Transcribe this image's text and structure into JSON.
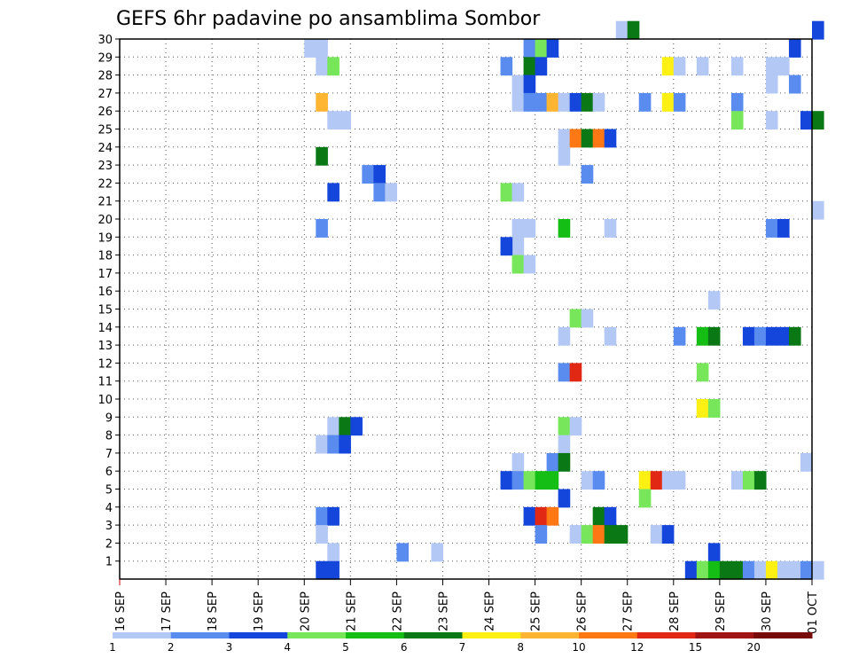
{
  "chart_data": {
    "type": "heatmap",
    "title": "GEFS 6hr padavine po ansamblima Sombor",
    "y_ticks": [
      1,
      2,
      3,
      4,
      5,
      6,
      7,
      8,
      9,
      10,
      11,
      12,
      13,
      14,
      15,
      16,
      17,
      18,
      19,
      20,
      21,
      22,
      23,
      24,
      25,
      26,
      27,
      28,
      29,
      30
    ],
    "y_range": [
      0,
      30
    ],
    "x_ticks": [
      "16 SEP",
      "17 SEP",
      "18 SEP",
      "19 SEP",
      "20 SEP",
      "21 SEP",
      "22 SEP",
      "23 SEP",
      "24 SEP",
      "25 SEP",
      "26 SEP",
      "27 SEP",
      "28 SEP",
      "29 SEP",
      "30 SEP",
      "01 OCT"
    ],
    "x_range_steps": [
      0,
      60
    ],
    "grid": true,
    "legend": {
      "placement": "bottom",
      "labels": [
        "1",
        "2",
        "3",
        "4",
        "5",
        "6",
        "7",
        "8",
        "10",
        "12",
        "15",
        "20"
      ],
      "colors": [
        "#b4c8f5",
        "#5a8cf0",
        "#1446dc",
        "#78e65a",
        "#14be14",
        "#0a7814",
        "#fff014",
        "#ffb432",
        "#ff7814",
        "#e12814",
        "#a01414",
        "#780a0a"
      ]
    },
    "cells": [
      {
        "t": 43,
        "m": 30,
        "c": 0
      },
      {
        "t": 44,
        "m": 30,
        "c": 5
      },
      {
        "t": 60,
        "m": 30,
        "c": 2
      },
      {
        "t": 16,
        "m": 29,
        "c": 0
      },
      {
        "t": 17,
        "m": 29,
        "c": 0
      },
      {
        "t": 35,
        "m": 29,
        "c": 1
      },
      {
        "t": 36,
        "m": 29,
        "c": 3
      },
      {
        "t": 37,
        "m": 29,
        "c": 2
      },
      {
        "t": 58,
        "m": 29,
        "c": 2
      },
      {
        "t": 17,
        "m": 28,
        "c": 0
      },
      {
        "t": 18,
        "m": 28,
        "c": 3
      },
      {
        "t": 33,
        "m": 28,
        "c": 1
      },
      {
        "t": 35,
        "m": 28,
        "c": 5
      },
      {
        "t": 36,
        "m": 28,
        "c": 2
      },
      {
        "t": 47,
        "m": 28,
        "c": 6
      },
      {
        "t": 48,
        "m": 28,
        "c": 0
      },
      {
        "t": 50,
        "m": 28,
        "c": 0
      },
      {
        "t": 53,
        "m": 28,
        "c": 0
      },
      {
        "t": 56,
        "m": 28,
        "c": 0
      },
      {
        "t": 57,
        "m": 28,
        "c": 0
      },
      {
        "t": 34,
        "m": 27,
        "c": 0
      },
      {
        "t": 35,
        "m": 27,
        "c": 2
      },
      {
        "t": 56,
        "m": 27,
        "c": 0
      },
      {
        "t": 58,
        "m": 27,
        "c": 1
      },
      {
        "t": 17,
        "m": 26,
        "c": 7
      },
      {
        "t": 34,
        "m": 26,
        "c": 0
      },
      {
        "t": 35,
        "m": 26,
        "c": 1
      },
      {
        "t": 36,
        "m": 26,
        "c": 1
      },
      {
        "t": 37,
        "m": 26,
        "c": 7
      },
      {
        "t": 38,
        "m": 26,
        "c": 0
      },
      {
        "t": 39,
        "m": 26,
        "c": 2
      },
      {
        "t": 40,
        "m": 26,
        "c": 5
      },
      {
        "t": 41,
        "m": 26,
        "c": 0
      },
      {
        "t": 45,
        "m": 26,
        "c": 1
      },
      {
        "t": 47,
        "m": 26,
        "c": 6
      },
      {
        "t": 48,
        "m": 26,
        "c": 1
      },
      {
        "t": 53,
        "m": 26,
        "c": 1
      },
      {
        "t": 18,
        "m": 25,
        "c": 0
      },
      {
        "t": 19,
        "m": 25,
        "c": 0
      },
      {
        "t": 53,
        "m": 25,
        "c": 3
      },
      {
        "t": 56,
        "m": 25,
        "c": 0
      },
      {
        "t": 59,
        "m": 25,
        "c": 2
      },
      {
        "t": 60,
        "m": 25,
        "c": 5
      },
      {
        "t": 38,
        "m": 24,
        "c": 0
      },
      {
        "t": 39,
        "m": 24,
        "c": 8
      },
      {
        "t": 40,
        "m": 24,
        "c": 5
      },
      {
        "t": 41,
        "m": 24,
        "c": 8
      },
      {
        "t": 42,
        "m": 24,
        "c": 2
      },
      {
        "t": 17,
        "m": 23,
        "c": 5
      },
      {
        "t": 38,
        "m": 23,
        "c": 0
      },
      {
        "t": 21,
        "m": 22,
        "c": 1
      },
      {
        "t": 22,
        "m": 22,
        "c": 2
      },
      {
        "t": 40,
        "m": 22,
        "c": 1
      },
      {
        "t": 18,
        "m": 21,
        "c": 2
      },
      {
        "t": 22,
        "m": 21,
        "c": 1
      },
      {
        "t": 23,
        "m": 21,
        "c": 0
      },
      {
        "t": 33,
        "m": 21,
        "c": 3
      },
      {
        "t": 34,
        "m": 21,
        "c": 0
      },
      {
        "t": 60,
        "m": 20,
        "c": 0
      },
      {
        "t": 17,
        "m": 19,
        "c": 1
      },
      {
        "t": 34,
        "m": 19,
        "c": 0
      },
      {
        "t": 35,
        "m": 19,
        "c": 0
      },
      {
        "t": 38,
        "m": 19,
        "c": 4
      },
      {
        "t": 42,
        "m": 19,
        "c": 0
      },
      {
        "t": 56,
        "m": 19,
        "c": 1
      },
      {
        "t": 57,
        "m": 19,
        "c": 2
      },
      {
        "t": 34,
        "m": 18,
        "c": 0
      },
      {
        "t": 33,
        "m": 18,
        "c": 2
      },
      {
        "t": 34,
        "m": 17,
        "c": 3
      },
      {
        "t": 35,
        "m": 17,
        "c": 0
      },
      {
        "t": 51,
        "m": 15,
        "c": 0
      },
      {
        "t": 39,
        "m": 14,
        "c": 3
      },
      {
        "t": 40,
        "m": 14,
        "c": 0
      },
      {
        "t": 38,
        "m": 13,
        "c": 0
      },
      {
        "t": 42,
        "m": 13,
        "c": 0
      },
      {
        "t": 48,
        "m": 13,
        "c": 1
      },
      {
        "t": 50,
        "m": 13,
        "c": 4
      },
      {
        "t": 51,
        "m": 13,
        "c": 5
      },
      {
        "t": 54,
        "m": 13,
        "c": 2
      },
      {
        "t": 55,
        "m": 13,
        "c": 1
      },
      {
        "t": 56,
        "m": 13,
        "c": 2
      },
      {
        "t": 57,
        "m": 13,
        "c": 2
      },
      {
        "t": 58,
        "m": 13,
        "c": 5
      },
      {
        "t": 38,
        "m": 11,
        "c": 1
      },
      {
        "t": 39,
        "m": 11,
        "c": 9
      },
      {
        "t": 50,
        "m": 11,
        "c": 3
      },
      {
        "t": 50,
        "m": 9,
        "c": 6
      },
      {
        "t": 51,
        "m": 9,
        "c": 3
      },
      {
        "t": 18,
        "m": 8,
        "c": 0
      },
      {
        "t": 19,
        "m": 8,
        "c": 5
      },
      {
        "t": 20,
        "m": 8,
        "c": 2
      },
      {
        "t": 38,
        "m": 8,
        "c": 3
      },
      {
        "t": 39,
        "m": 8,
        "c": 0
      },
      {
        "t": 17,
        "m": 7,
        "c": 0
      },
      {
        "t": 18,
        "m": 7,
        "c": 1
      },
      {
        "t": 19,
        "m": 7,
        "c": 2
      },
      {
        "t": 38,
        "m": 7,
        "c": 0
      },
      {
        "t": 34,
        "m": 6,
        "c": 0
      },
      {
        "t": 37,
        "m": 6,
        "c": 1
      },
      {
        "t": 38,
        "m": 6,
        "c": 5
      },
      {
        "t": 59,
        "m": 6,
        "c": 0
      },
      {
        "t": 33,
        "m": 5,
        "c": 2
      },
      {
        "t": 34,
        "m": 5,
        "c": 1
      },
      {
        "t": 35,
        "m": 5,
        "c": 3
      },
      {
        "t": 36,
        "m": 5,
        "c": 4
      },
      {
        "t": 37,
        "m": 5,
        "c": 4
      },
      {
        "t": 40,
        "m": 5,
        "c": 0
      },
      {
        "t": 41,
        "m": 5,
        "c": 1
      },
      {
        "t": 45,
        "m": 5,
        "c": 6
      },
      {
        "t": 46,
        "m": 5,
        "c": 9
      },
      {
        "t": 47,
        "m": 5,
        "c": 0
      },
      {
        "t": 48,
        "m": 5,
        "c": 0
      },
      {
        "t": 53,
        "m": 5,
        "c": 0
      },
      {
        "t": 54,
        "m": 5,
        "c": 3
      },
      {
        "t": 55,
        "m": 5,
        "c": 5
      },
      {
        "t": 38,
        "m": 4,
        "c": 2
      },
      {
        "t": 45,
        "m": 4,
        "c": 3
      },
      {
        "t": 17,
        "m": 3,
        "c": 1
      },
      {
        "t": 18,
        "m": 3,
        "c": 2
      },
      {
        "t": 35,
        "m": 3,
        "c": 2
      },
      {
        "t": 36,
        "m": 3,
        "c": 9
      },
      {
        "t": 37,
        "m": 3,
        "c": 8
      },
      {
        "t": 41,
        "m": 3,
        "c": 5
      },
      {
        "t": 42,
        "m": 3,
        "c": 2
      },
      {
        "t": 17,
        "m": 2,
        "c": 0
      },
      {
        "t": 36,
        "m": 2,
        "c": 1
      },
      {
        "t": 39,
        "m": 2,
        "c": 0
      },
      {
        "t": 40,
        "m": 2,
        "c": 3
      },
      {
        "t": 41,
        "m": 2,
        "c": 8
      },
      {
        "t": 42,
        "m": 2,
        "c": 5
      },
      {
        "t": 43,
        "m": 2,
        "c": 5
      },
      {
        "t": 46,
        "m": 2,
        "c": 0
      },
      {
        "t": 47,
        "m": 2,
        "c": 2
      },
      {
        "t": 18,
        "m": 1,
        "c": 0
      },
      {
        "t": 24,
        "m": 1,
        "c": 1
      },
      {
        "t": 27,
        "m": 1,
        "c": 0
      },
      {
        "t": 51,
        "m": 1,
        "c": 2
      },
      {
        "t": 17,
        "m": 0,
        "c": 2
      },
      {
        "t": 18,
        "m": 0,
        "c": 2
      },
      {
        "t": 49,
        "m": 0,
        "c": 2
      },
      {
        "t": 50,
        "m": 0,
        "c": 3
      },
      {
        "t": 51,
        "m": 0,
        "c": 4
      },
      {
        "t": 52,
        "m": 0,
        "c": 5
      },
      {
        "t": 53,
        "m": 0,
        "c": 5
      },
      {
        "t": 54,
        "m": 0,
        "c": 1
      },
      {
        "t": 55,
        "m": 0,
        "c": 0
      },
      {
        "t": 56,
        "m": 0,
        "c": 6
      },
      {
        "t": 57,
        "m": 0,
        "c": 0
      },
      {
        "t": 58,
        "m": 0,
        "c": 0
      },
      {
        "t": 59,
        "m": 0,
        "c": 1
      },
      {
        "t": 60,
        "m": 0,
        "c": 0
      }
    ]
  }
}
